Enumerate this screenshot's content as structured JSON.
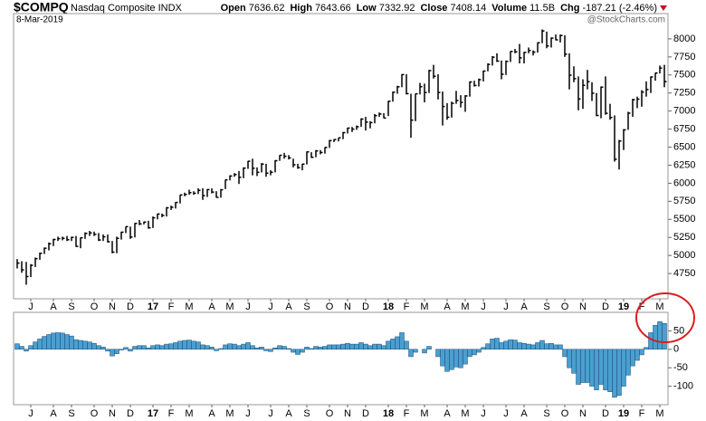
{
  "header": {
    "title": "$COMPQ",
    "subtitle": "Nasdaq Composite INDX",
    "date": "8-Mar-2019",
    "watermark": "@StockCharts.com",
    "quote": [
      {
        "label": "Open",
        "value": "7636.62"
      },
      {
        "label": "High",
        "value": "7643.66"
      },
      {
        "label": "Low",
        "value": "7332.92"
      },
      {
        "label": "Close",
        "value": "7408.14"
      },
      {
        "label": "Volume",
        "value": "11.5B"
      },
      {
        "label": "Chg",
        "value": "-187.21 (-2.46%)"
      }
    ]
  },
  "chart_data": [
    {
      "type": "ohlc",
      "color": "#000000",
      "categories": [
        null,
        null,
        null,
        "J",
        null,
        null,
        null,
        null,
        "A",
        null,
        null,
        null,
        "S",
        null,
        null,
        null,
        null,
        "O",
        null,
        null,
        null,
        "N",
        null,
        null,
        null,
        "D",
        null,
        null,
        null,
        null,
        "17",
        null,
        null,
        null,
        "F",
        null,
        null,
        null,
        "M",
        null,
        null,
        null,
        null,
        "A",
        null,
        null,
        null,
        "M",
        null,
        null,
        null,
        "J",
        null,
        null,
        null,
        null,
        "J",
        null,
        null,
        null,
        "A",
        null,
        null,
        null,
        "S",
        null,
        null,
        null,
        null,
        "O",
        null,
        null,
        null,
        "N",
        null,
        null,
        null,
        "D",
        null,
        null,
        null,
        null,
        "18",
        null,
        null,
        null,
        "F",
        null,
        null,
        null,
        "M",
        null,
        null,
        null,
        null,
        "A",
        null,
        null,
        null,
        "M",
        null,
        null,
        null,
        "J",
        null,
        null,
        null,
        null,
        "J",
        null,
        null,
        null,
        "A",
        null,
        null,
        null,
        null,
        "S",
        null,
        null,
        null,
        "O",
        null,
        null,
        null,
        "N",
        null,
        null,
        null,
        null,
        "D",
        null,
        null,
        null,
        "19",
        null,
        null,
        null,
        "F",
        null,
        null,
        null,
        "M",
        null
      ],
      "high": [
        4950,
        4920,
        4910,
        4880,
        4970,
        5040,
        5110,
        5180,
        5230,
        5260,
        5260,
        5270,
        5260,
        5270,
        5250,
        5320,
        5340,
        5330,
        5310,
        5290,
        5290,
        5200,
        5260,
        5330,
        5400,
        5400,
        5450,
        5490,
        5470,
        5480,
        5540,
        5580,
        5580,
        5670,
        5690,
        5740,
        5840,
        5870,
        5910,
        5890,
        5930,
        5930,
        5920,
        5930,
        5890,
        5920,
        6050,
        6110,
        6140,
        6170,
        6220,
        6310,
        6340,
        6220,
        6280,
        6270,
        6180,
        6320,
        6390,
        6420,
        6390,
        6340,
        6270,
        6270,
        6440,
        6430,
        6460,
        6460,
        6500,
        6600,
        6610,
        6630,
        6710,
        6770,
        6780,
        6800,
        6900,
        6920,
        6860,
        6960,
        6980,
        6970,
        7140,
        7270,
        7350,
        7510,
        7510,
        7240,
        7240,
        7390,
        7380,
        7570,
        7640,
        7510,
        7270,
        7110,
        7130,
        7280,
        7220,
        7220,
        7410,
        7420,
        7450,
        7560,
        7660,
        7760,
        7800,
        7700,
        7700,
        7830,
        7860,
        7930,
        7820,
        7880,
        7840,
        7950,
        8130,
        8100,
        8020,
        8060,
        8060,
        8050,
        7800,
        7620,
        7480,
        7440,
        7570,
        7400,
        7250,
        7340,
        7480,
        7100,
        6940,
        6600,
        6750,
        6990,
        7170,
        7200,
        7290,
        7410,
        7480,
        7530,
        7630,
        7640
      ],
      "low": [
        4820,
        4760,
        4595,
        4700,
        4840,
        4940,
        5020,
        5070,
        5130,
        5200,
        5210,
        5200,
        5200,
        5120,
        5100,
        5230,
        5270,
        5270,
        5200,
        5200,
        5180,
        5030,
        5030,
        5220,
        5310,
        5230,
        5250,
        5420,
        5430,
        5370,
        5380,
        5500,
        5530,
        5540,
        5630,
        5650,
        5720,
        5820,
        5840,
        5840,
        5850,
        5770,
        5810,
        5860,
        5800,
        5800,
        5920,
        6040,
        6090,
        5990,
        6070,
        6200,
        6110,
        6100,
        6150,
        6090,
        6110,
        6150,
        6310,
        6340,
        6330,
        6220,
        6200,
        6180,
        6260,
        6350,
        6360,
        6400,
        6410,
        6490,
        6570,
        6580,
        6610,
        6690,
        6710,
        6740,
        6780,
        6730,
        6760,
        6830,
        6920,
        6900,
        6930,
        7130,
        7240,
        7330,
        7230,
        6630,
        6860,
        7230,
        7120,
        7250,
        7450,
        7160,
        6800,
        6880,
        6910,
        7100,
        7050,
        6990,
        7200,
        7340,
        7340,
        7410,
        7550,
        7630,
        7680,
        7440,
        7500,
        7680,
        7800,
        7660,
        7660,
        7800,
        7770,
        7810,
        7940,
        7870,
        7880,
        7980,
        7950,
        7750,
        7300,
        7400,
        7010,
        7030,
        7300,
        7140,
        6930,
        6900,
        6950,
        6880,
        6300,
        6190,
        6460,
        6740,
        6920,
        7040,
        7060,
        7200,
        7250,
        7420,
        7520,
        7330
      ],
      "close": [
        4894,
        4800,
        4708,
        4863,
        4956,
        5030,
        5100,
        5162,
        5221,
        5233,
        5238,
        5218,
        5250,
        5126,
        5245,
        5306,
        5312,
        5292,
        5214,
        5258,
        5190,
        5046,
        5237,
        5322,
        5399,
        5255,
        5444,
        5437,
        5462,
        5383,
        5521,
        5574,
        5555,
        5660,
        5667,
        5734,
        5838,
        5845,
        5870,
        5861,
        5901,
        5828,
        5912,
        5878,
        5805,
        5910,
        6047,
        6100,
        6121,
        6083,
        6210,
        6305,
        6208,
        6151,
        6265,
        6140,
        6153,
        6312,
        6387,
        6374,
        6351,
        6256,
        6216,
        6265,
        6435,
        6360,
        6448,
        6426,
        6496,
        6590,
        6605,
        6629,
        6701,
        6764,
        6750,
        6783,
        6889,
        6847,
        6840,
        6936,
        6959,
        6903,
        7136,
        7261,
        7336,
        7505,
        7241,
        6874,
        7239,
        7337,
        7257,
        7560,
        7482,
        7257,
        7063,
        6915,
        7107,
        7146,
        7120,
        7209,
        7403,
        7354,
        7434,
        7554,
        7646,
        7746,
        7692,
        7510,
        7688,
        7826,
        7820,
        7737,
        7812,
        7839,
        7816,
        7946,
        8109,
        7903,
        8010,
        7986,
        8046,
        7788,
        7497,
        7449,
        7167,
        7357,
        7407,
        7247,
        6939,
        7331,
        6969,
        6911,
        6333,
        6585,
        6739,
        6971,
        7157,
        7165,
        7263,
        7298,
        7472,
        7527,
        7595,
        7408
      ],
      "ylim": [
        4400,
        8350
      ],
      "yticks": [
        4750,
        5000,
        5250,
        5500,
        5750,
        6000,
        6250,
        6500,
        6750,
        7000,
        7250,
        7500,
        7750,
        8000
      ]
    },
    {
      "type": "bar",
      "color": "#4a9fd0",
      "edge": "#1f4f74",
      "categories": [
        null,
        null,
        null,
        "J",
        null,
        null,
        null,
        null,
        "A",
        null,
        null,
        null,
        "S",
        null,
        null,
        null,
        null,
        "O",
        null,
        null,
        null,
        "N",
        null,
        null,
        null,
        "D",
        null,
        null,
        null,
        null,
        "17",
        null,
        null,
        null,
        "F",
        null,
        null,
        null,
        "M",
        null,
        null,
        null,
        null,
        "A",
        null,
        null,
        null,
        "M",
        null,
        null,
        null,
        "J",
        null,
        null,
        null,
        null,
        "J",
        null,
        null,
        null,
        "A",
        null,
        null,
        null,
        "S",
        null,
        null,
        null,
        null,
        "O",
        null,
        null,
        null,
        "N",
        null,
        null,
        null,
        "D",
        null,
        null,
        null,
        null,
        "18",
        null,
        null,
        null,
        "F",
        null,
        null,
        null,
        "M",
        null,
        null,
        null,
        null,
        "A",
        null,
        null,
        null,
        "M",
        null,
        null,
        null,
        "J",
        null,
        null,
        null,
        null,
        "J",
        null,
        null,
        null,
        "A",
        null,
        null,
        null,
        null,
        "S",
        null,
        null,
        null,
        "O",
        null,
        null,
        null,
        "N",
        null,
        null,
        null,
        null,
        "D",
        null,
        null,
        null,
        "19",
        null,
        null,
        null,
        "F",
        null,
        null,
        null,
        "M",
        null
      ],
      "values": [
        15,
        8,
        -5,
        10,
        20,
        28,
        35,
        40,
        44,
        45,
        44,
        40,
        36,
        26,
        24,
        22,
        20,
        16,
        10,
        6,
        -5,
        -18,
        -12,
        -2,
        5,
        -5,
        8,
        10,
        10,
        4,
        10,
        12,
        10,
        14,
        15,
        18,
        22,
        24,
        25,
        22,
        20,
        12,
        10,
        6,
        -4,
        2,
        12,
        15,
        14,
        10,
        14,
        18,
        10,
        4,
        6,
        -4,
        -6,
        4,
        10,
        8,
        2,
        -8,
        -14,
        -8,
        6,
        2,
        8,
        6,
        8,
        12,
        12,
        12,
        14,
        16,
        14,
        14,
        18,
        14,
        10,
        14,
        14,
        10,
        22,
        28,
        34,
        45,
        22,
        -20,
        -8,
        0,
        -10,
        8,
        0,
        -20,
        -45,
        -60,
        -55,
        -48,
        -50,
        -40,
        -20,
        -15,
        -8,
        5,
        15,
        28,
        30,
        18,
        22,
        26,
        25,
        18,
        16,
        14,
        12,
        18,
        24,
        15,
        16,
        12,
        12,
        -20,
        -50,
        -65,
        -95,
        -90,
        -90,
        -100,
        -110,
        -95,
        -110,
        -115,
        -130,
        -125,
        -100,
        -70,
        -45,
        -30,
        -15,
        5,
        45,
        65,
        75,
        70
      ],
      "ylim": [
        -150,
        100
      ],
      "yticks": [
        50,
        0,
        -50,
        -100
      ]
    }
  ]
}
